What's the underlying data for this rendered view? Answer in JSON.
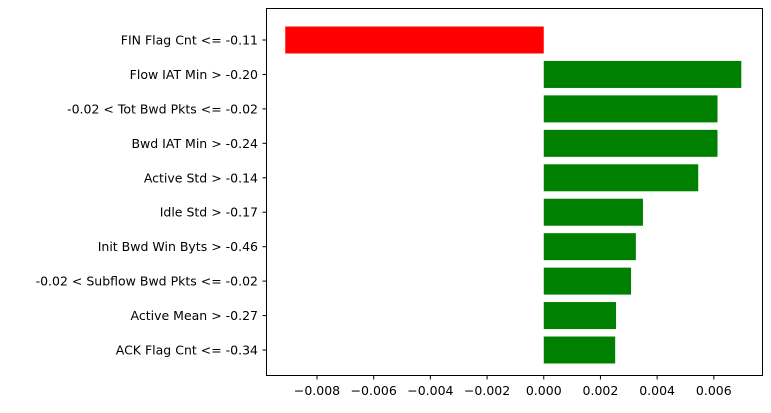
{
  "chart_data": {
    "type": "bar",
    "orientation": "horizontal",
    "title": "",
    "xlabel": "",
    "ylabel": "",
    "categories": [
      "FIN Flag Cnt <= -0.11",
      "Flow IAT Min > -0.20",
      "-0.02 < Tot Bwd Pkts <= -0.02",
      "Bwd IAT Min > -0.24",
      "Active Std > -0.14",
      "Idle Std > -0.17",
      "Init Bwd Win Byts > -0.46",
      "-0.02 < Subflow Bwd Pkts <= -0.02",
      "Active Mean > -0.27",
      "ACK Flag Cnt <= -0.34"
    ],
    "values": [
      -0.00912,
      0.00697,
      0.00613,
      0.00613,
      0.00545,
      0.0035,
      0.00325,
      0.00308,
      0.00255,
      0.00252
    ],
    "xlim": [
      -0.0098,
      0.0077
    ],
    "xticks": [
      -0.008,
      -0.006,
      -0.004,
      -0.002,
      0.0,
      0.002,
      0.004,
      0.006
    ],
    "xtick_labels": [
      "−0.008",
      "−0.006",
      "−0.004",
      "−0.002",
      "0.000",
      "0.002",
      "0.004",
      "0.006"
    ],
    "colors": {
      "negative": "#ff0000",
      "positive": "#008000"
    },
    "grid": false,
    "legend": "none"
  }
}
